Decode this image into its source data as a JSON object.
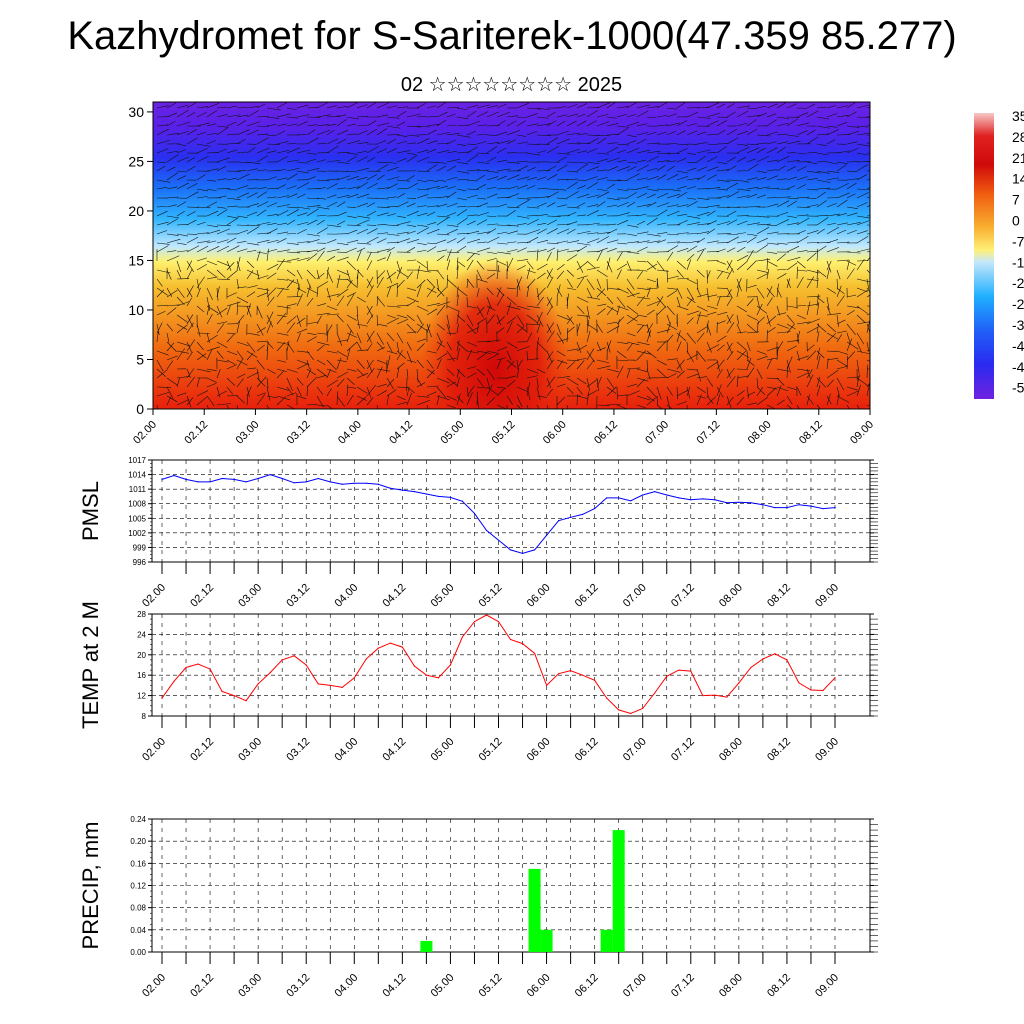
{
  "title": "Kazhydromet for S-Sariterek-1000(47.359 85.277)",
  "subtitle": "02 ☆☆☆☆☆☆☆☆ 2025",
  "colors": {
    "pmsl_line": "#0000ff",
    "temp_line": "#ff0000",
    "precip_bar": "#00ff00",
    "grid": "#000000"
  },
  "chart_data": [
    {
      "type": "heatmap",
      "name": "upper-air-temperature-wind",
      "y_ticks": [
        "0",
        "5",
        "10",
        "15",
        "20",
        "25",
        "30"
      ],
      "ylim": [
        0,
        31
      ],
      "x_ticks": [
        "02.00",
        "02.12",
        "03.00",
        "03.12",
        "04.00",
        "04.12",
        "05.00",
        "05.12",
        "06.00",
        "06.12",
        "07.00",
        "07.12",
        "08.00",
        "08.12",
        "09.00"
      ],
      "colorbar_labels": [
        "35",
        "28",
        "21",
        "14",
        "7",
        "0",
        "-7",
        "-1",
        "-2",
        "-2",
        "-3",
        "-4",
        "-4",
        "-5"
      ],
      "colorbar_range": [
        -56,
        35
      ],
      "overlay": "wind barbs"
    },
    {
      "type": "line",
      "name": "pmsl",
      "ylabel": "PMSL",
      "ylim": [
        996,
        1017
      ],
      "y_ticks": [
        "996",
        "999",
        "1002",
        "1005",
        "1008",
        "1011",
        "1014",
        "1017"
      ],
      "x_ticks": [
        "02.00",
        "02.12",
        "03.00",
        "03.12",
        "04.00",
        "04.12",
        "05.00",
        "05.12",
        "06.00",
        "06.12",
        "07.00",
        "07.12",
        "08.00",
        "08.12",
        "09.00"
      ],
      "x_hours": [
        0,
        3,
        6,
        9,
        12,
        15,
        18,
        21,
        24,
        27,
        30,
        33,
        36,
        39,
        42,
        45,
        48,
        51,
        54,
        57,
        60,
        63,
        66,
        69,
        72,
        75,
        78,
        81,
        84,
        87,
        90,
        93,
        96,
        99,
        102,
        105,
        108,
        111,
        114,
        117,
        120,
        123,
        126,
        129,
        132,
        135,
        138,
        141,
        144,
        147,
        150,
        153,
        156,
        159,
        162,
        165,
        168
      ],
      "values": [
        1013,
        1013.8,
        1013,
        1012.5,
        1012.5,
        1013.2,
        1013,
        1012.5,
        1013.2,
        1014,
        1013.2,
        1012.3,
        1012.5,
        1013.2,
        1012.5,
        1012,
        1012.2,
        1012.2,
        1012,
        1011.2,
        1010.8,
        1010.5,
        1010,
        1009.5,
        1009.3,
        1008.5,
        1006,
        1002.5,
        1000.5,
        998.5,
        997.8,
        998.5,
        1001.5,
        1004.5,
        1005.2,
        1005.8,
        1007,
        1009.2,
        1009.2,
        1008.6,
        1009.8,
        1010.5,
        1009.8,
        1009.2,
        1008.8,
        1009,
        1008.8,
        1008.2,
        1008.3,
        1008.2,
        1007.8,
        1007.2,
        1007.2,
        1007.8,
        1007.5,
        1007,
        1007.2
      ]
    },
    {
      "type": "line",
      "name": "temp-2m",
      "ylabel": "TEMP at 2 M",
      "ylim": [
        8,
        28
      ],
      "y_ticks": [
        "8",
        "12",
        "16",
        "20",
        "24",
        "28"
      ],
      "x_ticks": [
        "02.00",
        "02.12",
        "03.00",
        "03.12",
        "04.00",
        "04.12",
        "05.00",
        "05.12",
        "06.00",
        "06.12",
        "07.00",
        "07.12",
        "08.00",
        "08.12",
        "09.00"
      ],
      "x_hours": [
        0,
        3,
        6,
        9,
        12,
        15,
        18,
        21,
        24,
        27,
        30,
        33,
        36,
        39,
        42,
        45,
        48,
        51,
        54,
        57,
        60,
        63,
        66,
        69,
        72,
        75,
        78,
        81,
        84,
        87,
        90,
        93,
        96,
        99,
        102,
        105,
        108,
        111,
        114,
        117,
        120,
        123,
        126,
        129,
        132,
        135,
        138,
        141,
        144,
        147,
        150,
        153,
        156,
        159,
        162,
        165,
        168
      ],
      "values": [
        11.5,
        14.8,
        17.5,
        18.2,
        17.2,
        12.8,
        12,
        11,
        14.3,
        16.5,
        19,
        19.8,
        18,
        14.3,
        14,
        13.6,
        15.5,
        19.2,
        21.3,
        22.3,
        21.5,
        17.8,
        16,
        15.5,
        18,
        23.5,
        26.5,
        27.8,
        26.5,
        23,
        22.2,
        20.3,
        14,
        16.3,
        16.9,
        16,
        15,
        11.5,
        9.2,
        8.5,
        9.5,
        12.5,
        15.8,
        17,
        16.8,
        12,
        12.1,
        11.7,
        14.5,
        17.5,
        19.2,
        20.2,
        19,
        14.5,
        13.1,
        13,
        15.5
      ]
    },
    {
      "type": "bar",
      "name": "precip",
      "ylabel": "PRECIP, mm",
      "ylim": [
        0,
        0.24
      ],
      "y_ticks": [
        "0.00",
        "0.04",
        "0.08",
        "0.12",
        "0.16",
        "0.20",
        "0.24"
      ],
      "x_ticks": [
        "02.00",
        "02.12",
        "03.00",
        "03.12",
        "04.00",
        "04.12",
        "05.00",
        "05.12",
        "06.00",
        "06.12",
        "07.00",
        "07.12",
        "08.00",
        "08.12",
        "09.00"
      ],
      "bars": [
        {
          "hour": 66,
          "value": 0.02
        },
        {
          "hour": 93,
          "value": 0.15
        },
        {
          "hour": 96,
          "value": 0.04
        },
        {
          "hour": 111,
          "value": 0.04
        },
        {
          "hour": 114,
          "value": 0.22
        }
      ]
    }
  ]
}
